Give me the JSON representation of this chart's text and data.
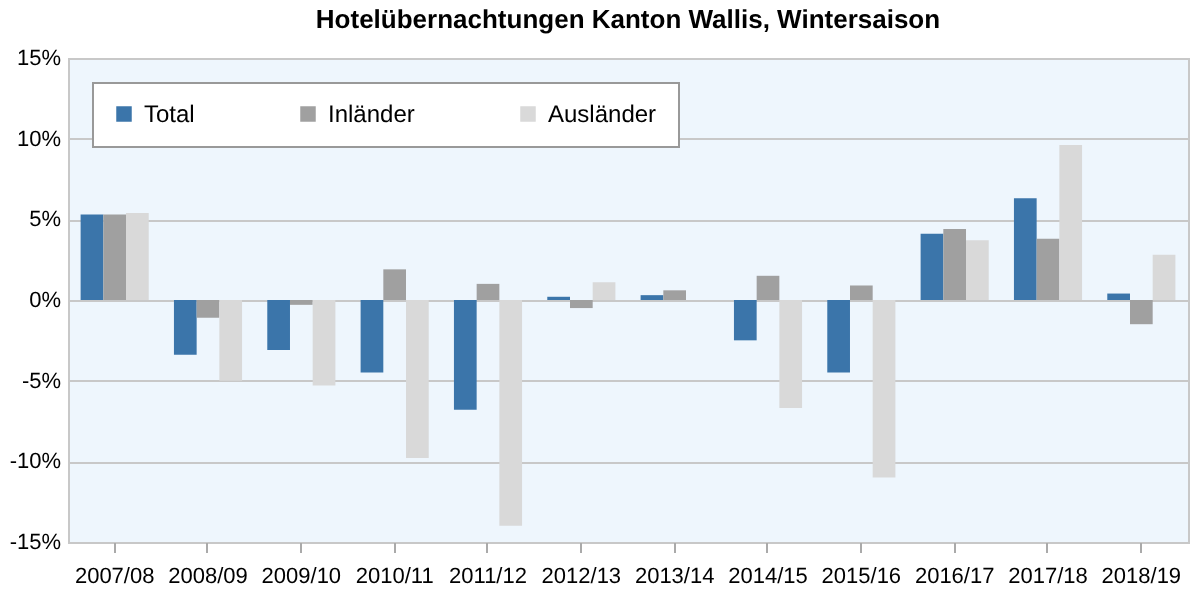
{
  "chart_data": {
    "type": "bar",
    "title": "Hotelübernachtungen Kanton Wallis, Wintersaison",
    "categories": [
      "2007/08",
      "2008/09",
      "2009/10",
      "2010/11",
      "2011/12",
      "2012/13",
      "2013/14",
      "2014/15",
      "2015/16",
      "2016/17",
      "2017/18",
      "2018/19"
    ],
    "series": [
      {
        "name": "Total",
        "color": "#3b75aa",
        "values": [
          5.3,
          -3.4,
          -3.1,
          -4.5,
          -6.8,
          0.2,
          0.3,
          -2.5,
          -4.5,
          4.1,
          6.3,
          0.4
        ]
      },
      {
        "name": "Inländer",
        "color": "#a0a0a0",
        "values": [
          5.3,
          -1.1,
          -0.3,
          1.9,
          1.0,
          -0.5,
          0.6,
          1.5,
          0.9,
          4.4,
          3.8,
          -1.5
        ]
      },
      {
        "name": "Ausländer",
        "color": "#d9d9d9",
        "values": [
          5.4,
          -5.0,
          -5.3,
          -9.8,
          -14.0,
          1.1,
          null,
          -6.7,
          -11.0,
          3.7,
          9.6,
          2.8
        ]
      }
    ],
    "ylim": [
      -15,
      15
    ],
    "yticks": [
      {
        "value": -15,
        "label": "-15%"
      },
      {
        "value": -10,
        "label": "-10%"
      },
      {
        "value": -5,
        "label": "-5%"
      },
      {
        "value": 0,
        "label": "0%"
      },
      {
        "value": 5,
        "label": "5%"
      },
      {
        "value": 10,
        "label": "10%"
      },
      {
        "value": 15,
        "label": "15%"
      }
    ],
    "grid": "y",
    "legend": "top left"
  }
}
